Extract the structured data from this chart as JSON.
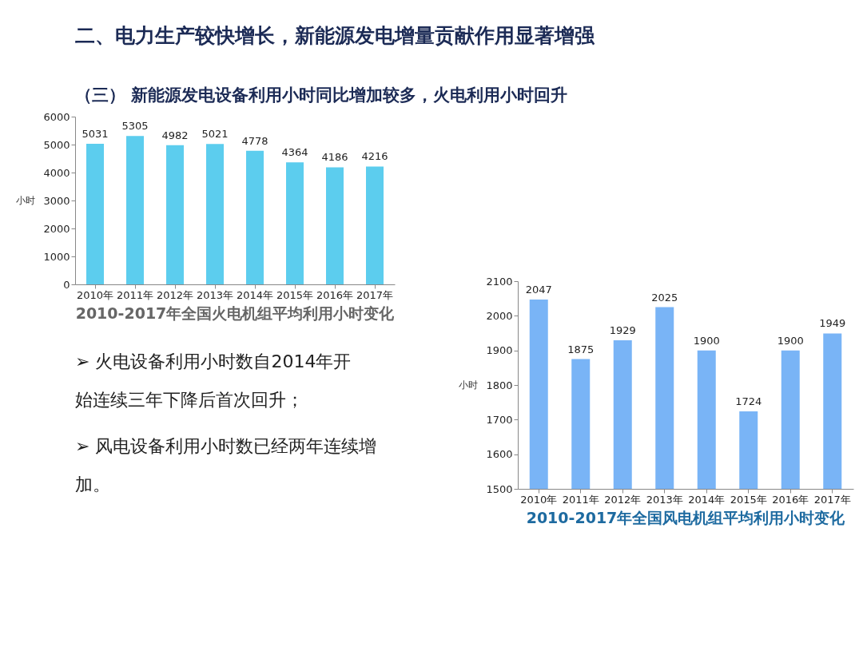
{
  "chart_data": [
    {
      "type": "other",
      "title": "二、电力生产较快增长，新能源发电增量贡献作用显著增强",
      "subtitle": "（三） 新能源发电设备利用小时同比增加较多，火电利用小时回升"
    },
    {
      "type": "bar",
      "title": "2010-2017年全国火电机组平均利用小时变化",
      "ylabel": "小时",
      "categories": [
        "2010年",
        "2011年",
        "2012年",
        "2013年",
        "2014年",
        "2015年",
        "2016年",
        "2017年"
      ],
      "series": [
        {
          "color": "#5ccdee",
          "values": [
            5031,
            5305,
            4982,
            5021,
            4778,
            4364,
            4186,
            4216
          ]
        }
      ],
      "ylim": [
        0,
        6000
      ],
      "yticks": [
        0,
        1000,
        2000,
        3000,
        4000,
        5000,
        6000
      ],
      "data_labels": true,
      "grid": false
    },
    {
      "type": "other",
      "annotations": [
        "➢ 火电设备利用小时数自2014年开始连续三年下降后首次回升；",
        "➢ 风电设备利用小时数已经两年连续增加。"
      ]
    },
    {
      "type": "bar",
      "title": "2010-2017年全国风电机组平均利用小时变化",
      "ylabel": "小时",
      "categories": [
        "2010年",
        "2011年",
        "2012年",
        "2013年",
        "2014年",
        "2015年",
        "2016年",
        "2017年"
      ],
      "series": [
        {
          "color": "#79b4f6",
          "values": [
            2047,
            1875,
            1929,
            2025,
            1900,
            1724,
            1900,
            1949
          ]
        }
      ],
      "ylim": [
        1500,
        2100
      ],
      "yticks": [
        1500,
        1600,
        1700,
        1800,
        1900,
        2000,
        2100
      ],
      "data_labels": true,
      "grid": false
    }
  ]
}
